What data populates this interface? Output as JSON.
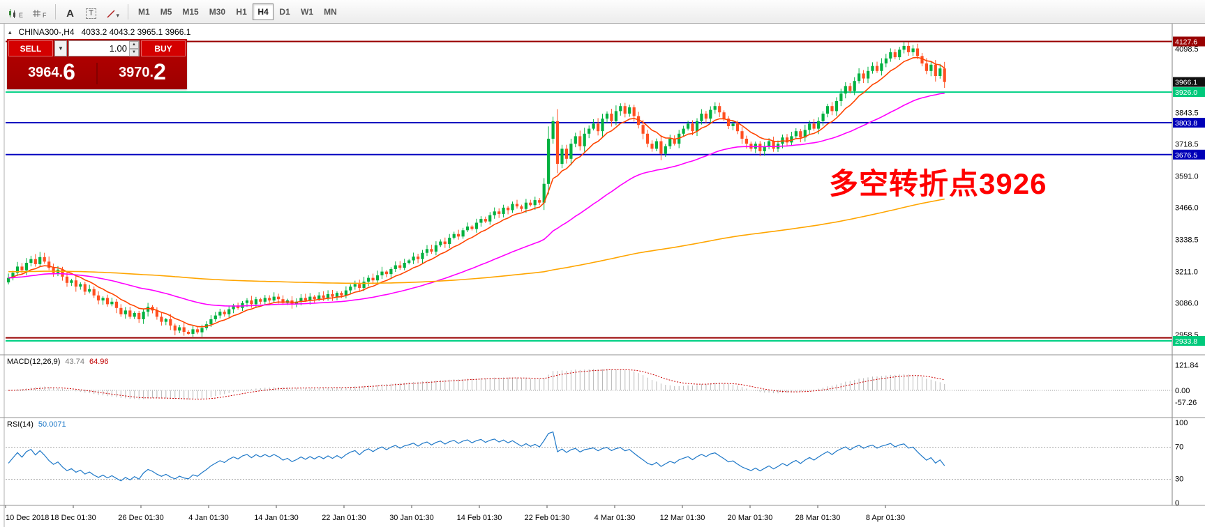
{
  "toolbar": {
    "tools": [
      {
        "name": "expert-chart",
        "glyph": "E"
      },
      {
        "name": "data-grid",
        "glyph": "F"
      },
      {
        "name": "text-tool",
        "glyph": "A"
      },
      {
        "name": "textbox-tool",
        "glyph": "T"
      },
      {
        "name": "line-tools",
        "glyph": "▾"
      }
    ],
    "timeframes": [
      "M1",
      "M5",
      "M15",
      "M30",
      "H1",
      "H4",
      "D1",
      "W1",
      "MN"
    ],
    "active_timeframe": "H4"
  },
  "chart": {
    "title": "CHINA300-,H4",
    "ohlc": "4033.2 4043.2 3965.1 3966.1"
  },
  "trade_panel": {
    "sell_label": "SELL",
    "buy_label": "BUY",
    "volume": "1.00",
    "sell_price_main": "3964.",
    "sell_price_big": "6",
    "buy_price_main": "3970.",
    "buy_price_big": "2"
  },
  "annotation": {
    "text": "多空转折点3926",
    "color": "#FF0000"
  },
  "price_axis": {
    "ticks": [
      4098.5,
      3843.5,
      3718.5,
      3591.0,
      3466.0,
      3338.5,
      3211.0,
      3086.0,
      2958.5
    ],
    "badges": [
      {
        "value": "4127.6",
        "price": 4127.6,
        "bg": "#990000"
      },
      {
        "value": "3966.1",
        "price": 3966.1,
        "bg": "#111111"
      },
      {
        "value": "3926.0",
        "price": 3926.0,
        "bg": "#00c97b"
      },
      {
        "value": "3803.8",
        "price": 3803.8,
        "bg": "#0000b8"
      },
      {
        "value": "3676.5",
        "price": 3676.5,
        "bg": "#0000b8"
      },
      {
        "value": "2933.8",
        "price": 2933.8,
        "bg": "#00c97b"
      }
    ]
  },
  "hlines": [
    {
      "price": 4127.6,
      "color": "#990000",
      "width": 2
    },
    {
      "price": 3926.0,
      "color": "#00d084",
      "width": 2
    },
    {
      "price": 3803.8,
      "color": "#0000c0",
      "width": 2
    },
    {
      "price": 3676.5,
      "color": "#0000c0",
      "width": 2
    },
    {
      "price": 2946.0,
      "color": "#990000",
      "width": 2
    },
    {
      "price": 2933.8,
      "color": "#00d084",
      "width": 2
    }
  ],
  "macd": {
    "label": "MACD(12,26,9)",
    "value_main": "43.74",
    "value_signal": "64.96",
    "axis": [
      "121.84",
      "0.00",
      "-57.26"
    ]
  },
  "rsi": {
    "label": "RSI(14)",
    "value": "50.0071",
    "axis": [
      "100",
      "70",
      "30",
      "0"
    ],
    "levels": [
      70,
      30
    ]
  },
  "time_axis": [
    "10 Dec 2018",
    "18 Dec 01:30",
    "26 Dec 01:30",
    "4 Jan 01:30",
    "14 Jan 01:30",
    "22 Jan 01:30",
    "30 Jan 01:30",
    "14 Feb 01:30",
    "22 Feb 01:30",
    "4 Mar 01:30",
    "12 Mar 01:30",
    "20 Mar 01:30",
    "28 Mar 01:30",
    "8 Apr 01:30"
  ],
  "chart_data": {
    "type": "candlestick",
    "symbol": "CHINA300-",
    "timeframe": "H4",
    "title": "CHINA300-,H4 4033.2 4043.2 3965.1 3966.1",
    "y_range": [
      2881,
      4193
    ],
    "session_high": 4127.6,
    "session_low": 2958.5,
    "last_price": 3966.1,
    "key_levels": [
      4127.6,
      3926.0,
      3803.8,
      3676.5,
      2933.8
    ],
    "colors": {
      "up": "#00b140",
      "down": "#ff4f21"
    },
    "overlays": [
      {
        "name": "fast",
        "type": "ema",
        "period": 10,
        "color": "#ff4500"
      },
      {
        "name": "mid",
        "type": "ema",
        "period": 50,
        "color": "#ff00ff"
      },
      {
        "name": "slow",
        "type": "ema",
        "period": 300,
        "color": "#ffa500"
      }
    ],
    "closes": [
      3185,
      3205,
      3230,
      3215,
      3245,
      3260,
      3240,
      3268,
      3250,
      3225,
      3205,
      3218,
      3190,
      3165,
      3175,
      3150,
      3160,
      3130,
      3140,
      3115,
      3095,
      3105,
      3080,
      3090,
      3065,
      3040,
      3055,
      3030,
      3045,
      3020,
      3050,
      3070,
      3055,
      3030,
      3010,
      3020,
      2995,
      2975,
      2988,
      2970,
      2962,
      2980,
      2968,
      2985,
      3000,
      3020,
      3035,
      3050,
      3040,
      3060,
      3075,
      3065,
      3085,
      3095,
      3080,
      3100,
      3090,
      3105,
      3095,
      3110,
      3100,
      3085,
      3095,
      3080,
      3090,
      3105,
      3095,
      3110,
      3100,
      3115,
      3105,
      3120,
      3110,
      3125,
      3115,
      3135,
      3150,
      3160,
      3145,
      3170,
      3185,
      3175,
      3195,
      3210,
      3200,
      3220,
      3235,
      3225,
      3245,
      3255,
      3270,
      3260,
      3285,
      3300,
      3290,
      3315,
      3330,
      3320,
      3345,
      3360,
      3350,
      3375,
      3390,
      3380,
      3405,
      3420,
      3410,
      3435,
      3450,
      3440,
      3465,
      3455,
      3480,
      3470,
      3460,
      3485,
      3475,
      3495,
      3485,
      3560,
      3740,
      3810,
      3640,
      3700,
      3660,
      3720,
      3750,
      3710,
      3760,
      3780,
      3800,
      3770,
      3820,
      3840,
      3810,
      3850,
      3870,
      3840,
      3865,
      3830,
      3795,
      3760,
      3720,
      3700,
      3730,
      3680,
      3710,
      3740,
      3720,
      3760,
      3780,
      3800,
      3770,
      3810,
      3840,
      3820,
      3855,
      3870,
      3845,
      3820,
      3790,
      3800,
      3770,
      3740,
      3720,
      3700,
      3720,
      3690,
      3710,
      3730,
      3700,
      3720,
      3745,
      3725,
      3750,
      3770,
      3745,
      3775,
      3800,
      3780,
      3810,
      3840,
      3870,
      3850,
      3890,
      3920,
      3950,
      3930,
      3970,
      4000,
      3980,
      4010,
      4030,
      4010,
      4040,
      4060,
      4085,
      4065,
      4095,
      4110,
      4085,
      4100,
      4070,
      4040,
      4010,
      4035,
      3990,
      4020,
      3966.1
    ]
  }
}
